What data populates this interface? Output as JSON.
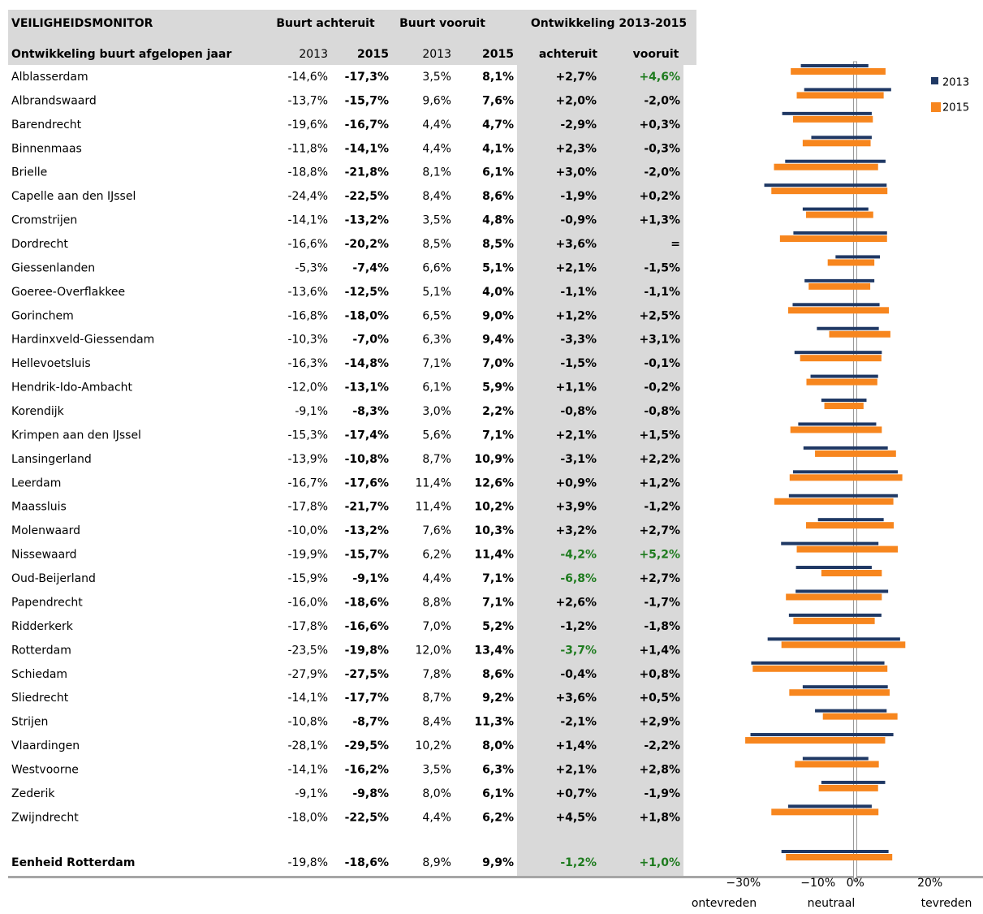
{
  "header": {
    "title": "VEILIGHEIDSMONITOR",
    "group_achteruit": "Buurt achteruit",
    "group_vooruit": "Buurt vooruit",
    "group_ontwikkeling": "Ontwikkeling 2013-2015",
    "subtitle": "Ontwikkeling buurt afgelopen jaar",
    "columns": [
      "2013",
      "2015",
      "2013",
      "2015",
      "achteruit",
      "vooruit"
    ]
  },
  "table": {
    "highlight_color": "#1e7b1e",
    "rows": [
      {
        "name": "Alblasserdam",
        "values": [
          -14.6,
          -17.3,
          3.5,
          8.1,
          2.7,
          4.6
        ],
        "value_labels": [
          "-14,6%",
          "-17,3%",
          "3,5%",
          "8,1%",
          "+2,7%",
          "+4,6%"
        ],
        "highlight": [
          5
        ]
      },
      {
        "name": "Albrandswaard",
        "values": [
          -13.7,
          -15.7,
          9.6,
          7.6,
          2.0,
          -2.0
        ],
        "value_labels": [
          "-13,7%",
          "-15,7%",
          "9,6%",
          "7,6%",
          "+2,0%",
          "-2,0%"
        ]
      },
      {
        "name": "Barendrecht",
        "values": [
          -19.6,
          -16.7,
          4.4,
          4.7,
          -2.9,
          0.3
        ],
        "value_labels": [
          "-19,6%",
          "-16,7%",
          "4,4%",
          "4,7%",
          "-2,9%",
          "+0,3%"
        ]
      },
      {
        "name": "Binnenmaas",
        "values": [
          -11.8,
          -14.1,
          4.4,
          4.1,
          2.3,
          -0.3
        ],
        "value_labels": [
          "-11,8%",
          "-14,1%",
          "4,4%",
          "4,1%",
          "+2,3%",
          "-0,3%"
        ]
      },
      {
        "name": "Brielle",
        "values": [
          -18.8,
          -21.8,
          8.1,
          6.1,
          3.0,
          -2.0
        ],
        "value_labels": [
          "-18,8%",
          "-21,8%",
          "8,1%",
          "6,1%",
          "+3,0%",
          "-2,0%"
        ]
      },
      {
        "name": "Capelle aan den IJssel",
        "values": [
          -24.4,
          -22.5,
          8.4,
          8.6,
          -1.9,
          0.2
        ],
        "value_labels": [
          "-24,4%",
          "-22,5%",
          "8,4%",
          "8,6%",
          "-1,9%",
          "+0,2%"
        ]
      },
      {
        "name": "Cromstrijen",
        "values": [
          -14.1,
          -13.2,
          3.5,
          4.8,
          -0.9,
          1.3
        ],
        "value_labels": [
          "-14,1%",
          "-13,2%",
          "3,5%",
          "4,8%",
          "-0,9%",
          "+1,3%"
        ]
      },
      {
        "name": "Dordrecht",
        "values": [
          -16.6,
          -20.2,
          8.5,
          8.5,
          3.6,
          0
        ],
        "value_labels": [
          "-16,6%",
          "-20,2%",
          "8,5%",
          "8,5%",
          "+3,6%",
          "="
        ]
      },
      {
        "name": "Giessenlanden",
        "values": [
          -5.3,
          -7.4,
          6.6,
          5.1,
          2.1,
          -1.5
        ],
        "value_labels": [
          "-5,3%",
          "-7,4%",
          "6,6%",
          "5,1%",
          "+2,1%",
          "-1,5%"
        ]
      },
      {
        "name": "Goeree-Overflakkee",
        "values": [
          -13.6,
          -12.5,
          5.1,
          4.0,
          -1.1,
          -1.1
        ],
        "value_labels": [
          "-13,6%",
          "-12,5%",
          "5,1%",
          "4,0%",
          "-1,1%",
          "-1,1%"
        ]
      },
      {
        "name": "Gorinchem",
        "values": [
          -16.8,
          -18.0,
          6.5,
          9.0,
          1.2,
          2.5
        ],
        "value_labels": [
          "-16,8%",
          "-18,0%",
          "6,5%",
          "9,0%",
          "+1,2%",
          "+2,5%"
        ]
      },
      {
        "name": "Hardinxveld-Giessendam",
        "values": [
          -10.3,
          -7.0,
          6.3,
          9.4,
          -3.3,
          3.1
        ],
        "value_labels": [
          "-10,3%",
          "-7,0%",
          "6,3%",
          "9,4%",
          "-3,3%",
          "+3,1%"
        ]
      },
      {
        "name": "Hellevoetsluis",
        "values": [
          -16.3,
          -14.8,
          7.1,
          7.0,
          -1.5,
          -0.1
        ],
        "value_labels": [
          "-16,3%",
          "-14,8%",
          "7,1%",
          "7,0%",
          "-1,5%",
          "-0,1%"
        ]
      },
      {
        "name": "Hendrik-Ido-Ambacht",
        "values": [
          -12.0,
          -13.1,
          6.1,
          5.9,
          1.1,
          -0.2
        ],
        "value_labels": [
          "-12,0%",
          "-13,1%",
          "6,1%",
          "5,9%",
          "+1,1%",
          "-0,2%"
        ]
      },
      {
        "name": "Korendijk",
        "values": [
          -9.1,
          -8.3,
          3.0,
          2.2,
          -0.8,
          -0.8
        ],
        "value_labels": [
          "-9,1%",
          "-8,3%",
          "3,0%",
          "2,2%",
          "-0,8%",
          "-0,8%"
        ]
      },
      {
        "name": "Krimpen aan den IJssel",
        "values": [
          -15.3,
          -17.4,
          5.6,
          7.1,
          2.1,
          1.5
        ],
        "value_labels": [
          "-15,3%",
          "-17,4%",
          "5,6%",
          "7,1%",
          "+2,1%",
          "+1,5%"
        ]
      },
      {
        "name": "Lansingerland",
        "values": [
          -13.9,
          -10.8,
          8.7,
          10.9,
          -3.1,
          2.2
        ],
        "value_labels": [
          "-13,9%",
          "-10,8%",
          "8,7%",
          "10,9%",
          "-3,1%",
          "+2,2%"
        ]
      },
      {
        "name": "Leerdam",
        "values": [
          -16.7,
          -17.6,
          11.4,
          12.6,
          0.9,
          1.2
        ],
        "value_labels": [
          "-16,7%",
          "-17,6%",
          "11,4%",
          "12,6%",
          "+0,9%",
          "+1,2%"
        ]
      },
      {
        "name": "Maassluis",
        "values": [
          -17.8,
          -21.7,
          11.4,
          10.2,
          3.9,
          -1.2
        ],
        "value_labels": [
          "-17,8%",
          "-21,7%",
          "11,4%",
          "10,2%",
          "+3,9%",
          "-1,2%"
        ]
      },
      {
        "name": "Molenwaard",
        "values": [
          -10.0,
          -13.2,
          7.6,
          10.3,
          3.2,
          2.7
        ],
        "value_labels": [
          "-10,0%",
          "-13,2%",
          "7,6%",
          "10,3%",
          "+3,2%",
          "+2,7%"
        ]
      },
      {
        "name": "Nissewaard",
        "values": [
          -19.9,
          -15.7,
          6.2,
          11.4,
          -4.2,
          5.2
        ],
        "value_labels": [
          "-19,9%",
          "-15,7%",
          "6,2%",
          "11,4%",
          "-4,2%",
          "+5,2%"
        ],
        "highlight": [
          4,
          5
        ]
      },
      {
        "name": "Oud-Beijerland",
        "values": [
          -15.9,
          -9.1,
          4.4,
          7.1,
          -6.8,
          2.7
        ],
        "value_labels": [
          "-15,9%",
          "-9,1%",
          "4,4%",
          "7,1%",
          "-6,8%",
          "+2,7%"
        ],
        "highlight": [
          4
        ]
      },
      {
        "name": "Papendrecht",
        "values": [
          -16.0,
          -18.6,
          8.8,
          7.1,
          2.6,
          -1.7
        ],
        "value_labels": [
          "-16,0%",
          "-18,6%",
          "8,8%",
          "7,1%",
          "+2,6%",
          "-1,7%"
        ]
      },
      {
        "name": "Ridderkerk",
        "values": [
          -17.8,
          -16.6,
          7.0,
          5.2,
          -1.2,
          -1.8
        ],
        "value_labels": [
          "-17,8%",
          "-16,6%",
          "7,0%",
          "5,2%",
          "-1,2%",
          "-1,8%"
        ]
      },
      {
        "name": "Rotterdam",
        "values": [
          -23.5,
          -19.8,
          12.0,
          13.4,
          -3.7,
          1.4
        ],
        "value_labels": [
          "-23,5%",
          "-19,8%",
          "12,0%",
          "13,4%",
          "-3,7%",
          "+1,4%"
        ],
        "highlight": [
          4
        ]
      },
      {
        "name": "Schiedam",
        "values": [
          -27.9,
          -27.5,
          7.8,
          8.6,
          -0.4,
          0.8
        ],
        "value_labels": [
          "-27,9%",
          "-27,5%",
          "7,8%",
          "8,6%",
          "-0,4%",
          "+0,8%"
        ]
      },
      {
        "name": "Sliedrecht",
        "values": [
          -14.1,
          -17.7,
          8.7,
          9.2,
          3.6,
          0.5
        ],
        "value_labels": [
          "-14,1%",
          "-17,7%",
          "8,7%",
          "9,2%",
          "+3,6%",
          "+0,5%"
        ]
      },
      {
        "name": "Strijen",
        "values": [
          -10.8,
          -8.7,
          8.4,
          11.3,
          -2.1,
          2.9
        ],
        "value_labels": [
          "-10,8%",
          "-8,7%",
          "8,4%",
          "11,3%",
          "-2,1%",
          "+2,9%"
        ]
      },
      {
        "name": "Vlaardingen",
        "values": [
          -28.1,
          -29.5,
          10.2,
          8.0,
          1.4,
          -2.2
        ],
        "value_labels": [
          "-28,1%",
          "-29,5%",
          "10,2%",
          "8,0%",
          "+1,4%",
          "-2,2%"
        ]
      },
      {
        "name": "Westvoorne",
        "values": [
          -14.1,
          -16.2,
          3.5,
          6.3,
          2.1,
          2.8
        ],
        "value_labels": [
          "-14,1%",
          "-16,2%",
          "3,5%",
          "6,3%",
          "+2,1%",
          "+2,8%"
        ]
      },
      {
        "name": "Zederik",
        "values": [
          -9.1,
          -9.8,
          8.0,
          6.1,
          0.7,
          -1.9
        ],
        "value_labels": [
          "-9,1%",
          "-9,8%",
          "8,0%",
          "6,1%",
          "+0,7%",
          "-1,9%"
        ]
      },
      {
        "name": "Zwijndrecht",
        "values": [
          -18.0,
          -22.5,
          4.4,
          6.2,
          4.5,
          1.8
        ],
        "value_labels": [
          "-18,0%",
          "-22,5%",
          "4,4%",
          "6,2%",
          "+4,5%",
          "+1,8%"
        ]
      }
    ],
    "total": {
      "name": "Eenheid Rotterdam",
      "values": [
        -19.8,
        -18.6,
        8.9,
        9.9,
        -1.2,
        1.0
      ],
      "value_labels": [
        "-19,8%",
        "-18,6%",
        "8,9%",
        "9,9%",
        "-1,2%",
        "+1,0%"
      ],
      "highlight": [
        4,
        5
      ]
    }
  },
  "chart_data": {
    "type": "bar",
    "series": [
      {
        "name": "2013",
        "color": "#1f3864"
      },
      {
        "name": "2015",
        "color": "#f7861e"
      }
    ],
    "xlim": [
      -33,
      34
    ],
    "xticks": [
      {
        "value": -30,
        "label": "−30%"
      },
      {
        "value": -10,
        "label": "−10%"
      },
      {
        "value": 0,
        "label": "0%"
      },
      {
        "value": 20,
        "label": "20%"
      }
    ],
    "axis_labels": [
      "ontevreden",
      "neutraal",
      "tevreden"
    ]
  }
}
